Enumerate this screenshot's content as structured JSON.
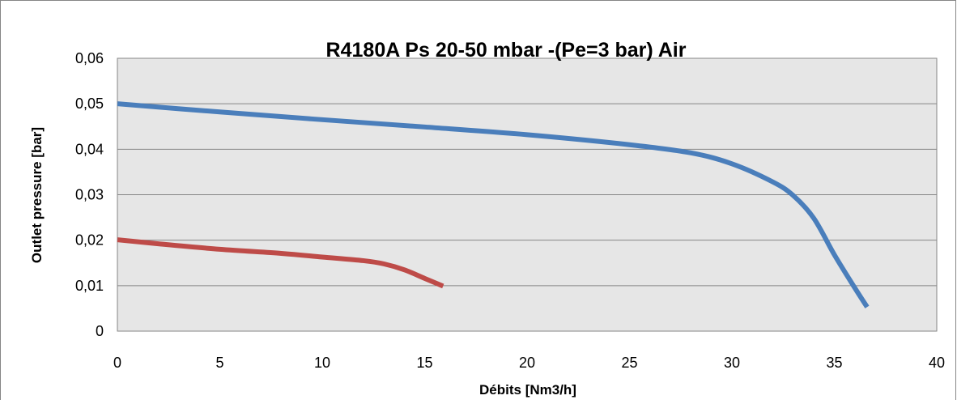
{
  "chart_data": {
    "type": "line",
    "title": "R4180A Ps 20-50 mbar -(Pe=3 bar) Air",
    "xlabel": "Débits [Nm3/h]",
    "ylabel": "Outlet pressure [bar]",
    "xlim": [
      0,
      40
    ],
    "ylim": [
      0,
      0.06
    ],
    "x_ticks": [
      0,
      5,
      10,
      15,
      20,
      25,
      30,
      35,
      40
    ],
    "x_tick_labels": [
      "0",
      "5",
      "10",
      "15",
      "20",
      "25",
      "30",
      "35",
      "40"
    ],
    "y_ticks": [
      0,
      0.01,
      0.02,
      0.03,
      0.04,
      0.05,
      0.06
    ],
    "y_tick_labels": [
      "0",
      "0,01",
      "0,02",
      "0,03",
      "0,04",
      "0,05",
      "0,06"
    ],
    "grid": true,
    "legend": "none",
    "plot_background": "#e6e6e6",
    "series": [
      {
        "color": "#4a7ebb",
        "points": [
          [
            0,
            0.05
          ],
          [
            5,
            0.0482
          ],
          [
            10,
            0.0465
          ],
          [
            15,
            0.0449
          ],
          [
            20,
            0.0432
          ],
          [
            25,
            0.041
          ],
          [
            28,
            0.0392
          ],
          [
            30,
            0.0368
          ],
          [
            32,
            0.0328
          ],
          [
            33,
            0.0298
          ],
          [
            34,
            0.0248
          ],
          [
            35,
            0.0168
          ],
          [
            36,
            0.0095
          ],
          [
            36.6,
            0.0053
          ]
        ]
      },
      {
        "color": "#be4b48",
        "points": [
          [
            0,
            0.0201
          ],
          [
            2,
            0.0192
          ],
          [
            5,
            0.018
          ],
          [
            8,
            0.0171
          ],
          [
            10,
            0.0163
          ],
          [
            12,
            0.0155
          ],
          [
            13,
            0.0148
          ],
          [
            14,
            0.0135
          ],
          [
            15,
            0.0116
          ],
          [
            15.9,
            0.0099
          ]
        ]
      }
    ]
  }
}
